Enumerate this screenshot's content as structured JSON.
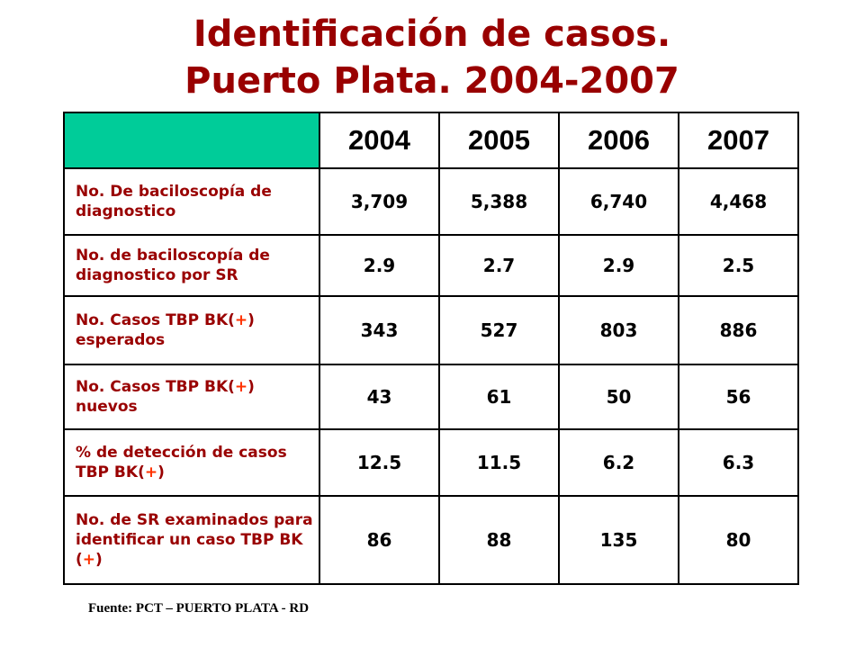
{
  "title": {
    "line1": "Identificación de casos.",
    "line2": "Puerto Plata. 2004-2007"
  },
  "table": {
    "years": [
      "2004",
      "2005",
      "2006",
      "2007"
    ],
    "rows": [
      {
        "label": "No. De baciloscopía de diagnostico",
        "values": [
          "3,709",
          "5,388",
          "6,740",
          "4,468"
        ]
      },
      {
        "label": "No. de baciloscopía de diagnostico por SR",
        "values": [
          "2.9",
          "2.7",
          "2.9",
          "2.5"
        ]
      },
      {
        "label_pre": "No. Casos TBP BK(",
        "label_post": ") esperados",
        "values": [
          "343",
          "527",
          "803",
          "886"
        ]
      },
      {
        "label_pre": "No. Casos TBP BK(",
        "label_post": ") nuevos",
        "values": [
          "43",
          "61",
          "50",
          "56"
        ]
      },
      {
        "label_pre": "% de detección de casos TBP BK(",
        "label_post": ")",
        "values": [
          "12.5",
          "11.5",
          "6.2",
          "6.3"
        ]
      },
      {
        "label_pre": "No. de SR examinados para identificar un caso TBP BK (",
        "label_post": ")",
        "values": [
          "86",
          "88",
          "135",
          "80"
        ]
      }
    ],
    "plus_sign": "+",
    "header_color": "#00cc99"
  },
  "source": "Fuente: PCT – PUERTO PLATA - RD",
  "colors": {
    "title": "#990000",
    "label": "#990000",
    "plus": "#ff3300"
  }
}
